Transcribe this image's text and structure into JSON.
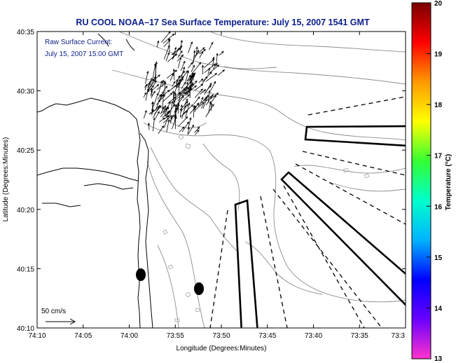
{
  "title": "RU COOL  NOAA–17  Sea Surface Temperature:  July 15, 2007 1541 GMT",
  "annotation": {
    "line1": "Raw Surface Current:",
    "line2": "July 15, 2007 15:00 GMT"
  },
  "scale_label": "50 cm/s",
  "x_axis": {
    "label": "Longitude (Degrees:Minutes)",
    "ticks": [
      "74:10",
      "74:05",
      "74:00",
      "73:55",
      "73:50",
      "73:45",
      "73:40",
      "73:35",
      "73:3"
    ]
  },
  "y_axis": {
    "label": "Latitude (Degrees:Minutes)",
    "ticks": [
      "40:35",
      "40:30",
      "40:25",
      "40:20",
      "40:15",
      "40:10"
    ]
  },
  "colorbar": {
    "label": "Temperature (°C)",
    "ticks": [
      "20",
      "19",
      "18",
      "17",
      "16",
      "15",
      "14",
      "13"
    ],
    "min": 13,
    "max": 20,
    "colors": [
      "#ff33cc",
      "#6a00ff",
      "#0000ff",
      "#00b4ff",
      "#00ffcc",
      "#33ff33",
      "#ffff00",
      "#ff9900",
      "#ff0000",
      "#7a0000"
    ]
  },
  "chart_data": {
    "type": "map",
    "xlim": [
      "74:10",
      "73:3"
    ],
    "ylim": [
      "40:10",
      "40:35"
    ],
    "markers": [
      {
        "lon": "73:59",
        "lat": "40:14.7"
      },
      {
        "lon": "73:52.5",
        "lat": "40:13.5"
      }
    ]
  }
}
